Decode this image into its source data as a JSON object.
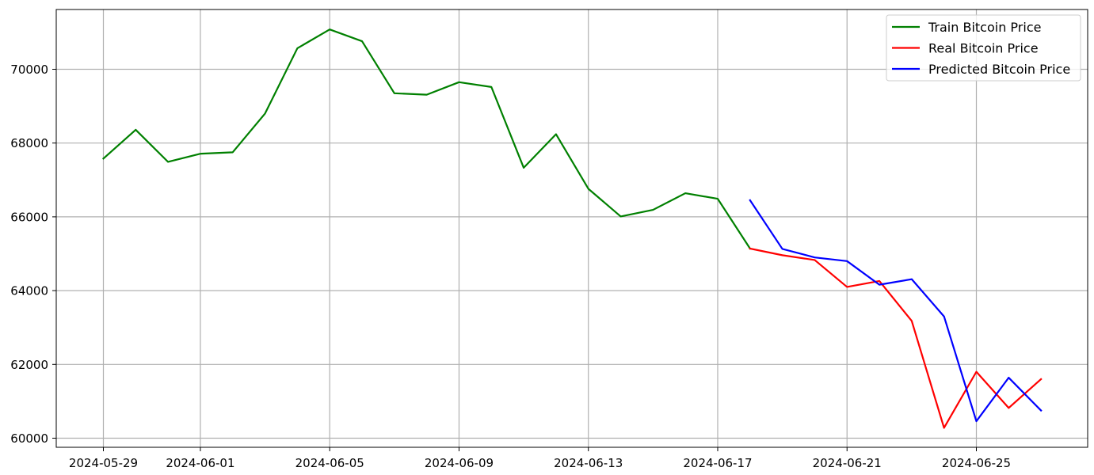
{
  "chart_data": {
    "type": "line",
    "title": "",
    "xlabel": "",
    "ylabel": "",
    "x_tick_labels": [
      "2024-05-29",
      "2024-06-01",
      "2024-06-05",
      "2024-06-09",
      "2024-06-13",
      "2024-06-17",
      "2024-06-21",
      "2024-06-25"
    ],
    "y_tick_labels": [
      "60000",
      "62000",
      "64000",
      "66000",
      "68000",
      "70000"
    ],
    "xlim": [
      "2024-05-27",
      "2024-06-29"
    ],
    "ylim": [
      59750,
      71650
    ],
    "grid": true,
    "legend_position": "top-right",
    "series": [
      {
        "name": "Train Bitcoin Price",
        "color": "#008000",
        "points": [
          [
            "2024-05-29",
            67580
          ],
          [
            "2024-05-30",
            68360
          ],
          [
            "2024-05-31",
            67490
          ],
          [
            "2024-06-01",
            67710
          ],
          [
            "2024-06-02",
            67750
          ],
          [
            "2024-06-03",
            68800
          ],
          [
            "2024-06-04",
            70570
          ],
          [
            "2024-06-05",
            71080
          ],
          [
            "2024-06-06",
            70760
          ],
          [
            "2024-06-07",
            69350
          ],
          [
            "2024-06-08",
            69310
          ],
          [
            "2024-06-09",
            69650
          ],
          [
            "2024-06-10",
            69520
          ],
          [
            "2024-06-11",
            67330
          ],
          [
            "2024-06-12",
            68240
          ],
          [
            "2024-06-13",
            66760
          ],
          [
            "2024-06-14",
            66010
          ],
          [
            "2024-06-15",
            66190
          ],
          [
            "2024-06-16",
            66640
          ],
          [
            "2024-06-17",
            66490
          ],
          [
            "2024-06-18",
            65140
          ]
        ]
      },
      {
        "name": "Real Bitcoin Price",
        "color": "#ff0000",
        "points": [
          [
            "2024-06-18",
            65140
          ],
          [
            "2024-06-19",
            64960
          ],
          [
            "2024-06-20",
            64830
          ],
          [
            "2024-06-21",
            64100
          ],
          [
            "2024-06-22",
            64260
          ],
          [
            "2024-06-23",
            63180
          ],
          [
            "2024-06-24",
            60280
          ],
          [
            "2024-06-25",
            61800
          ],
          [
            "2024-06-26",
            60820
          ],
          [
            "2024-06-27",
            61600
          ]
        ]
      },
      {
        "name": "Predicted Bitcoin Price",
        "color": "#0000ff",
        "points": [
          [
            "2024-06-18",
            66450
          ],
          [
            "2024-06-19",
            65130
          ],
          [
            "2024-06-20",
            64900
          ],
          [
            "2024-06-21",
            64800
          ],
          [
            "2024-06-22",
            64160
          ],
          [
            "2024-06-23",
            64310
          ],
          [
            "2024-06-24",
            63300
          ],
          [
            "2024-06-25",
            60460
          ],
          [
            "2024-06-26",
            61640
          ],
          [
            "2024-06-27",
            60750
          ]
        ]
      }
    ]
  }
}
